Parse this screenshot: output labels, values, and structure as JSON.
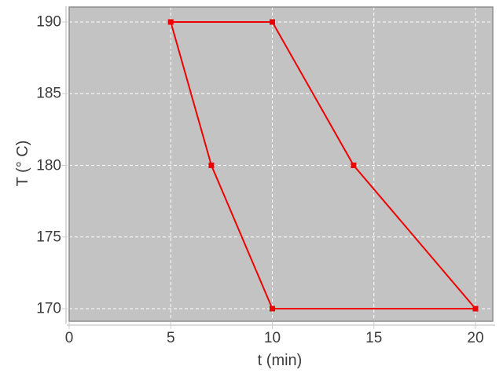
{
  "chart_data": {
    "type": "line",
    "title": "",
    "xlabel": "t (min)",
    "ylabel": "T (° C)",
    "xlim": [
      0,
      20.9
    ],
    "ylim": [
      169.1,
      191
    ],
    "xticks": [
      0,
      5,
      10,
      15,
      20
    ],
    "yticks": [
      170,
      175,
      180,
      185,
      190
    ],
    "grid": true,
    "legend": false,
    "series": [
      {
        "name": "temperature-cycle",
        "marker": "square",
        "closed": true,
        "points": [
          [
            5,
            190
          ],
          [
            10,
            190
          ],
          [
            14,
            180
          ],
          [
            20,
            170
          ],
          [
            10,
            170
          ],
          [
            7,
            180
          ],
          [
            5,
            190
          ]
        ]
      }
    ],
    "style": {
      "line_color": "#ee0000",
      "marker_color": "#ee0000",
      "plot_bg": "#c3c3c3",
      "plot_border": "#8c8c8c",
      "grid_color": "#ffffff",
      "axis_color": "#cdcdcd",
      "text_color": "#3c3c3c",
      "outer_bg": "#ffffff"
    }
  }
}
